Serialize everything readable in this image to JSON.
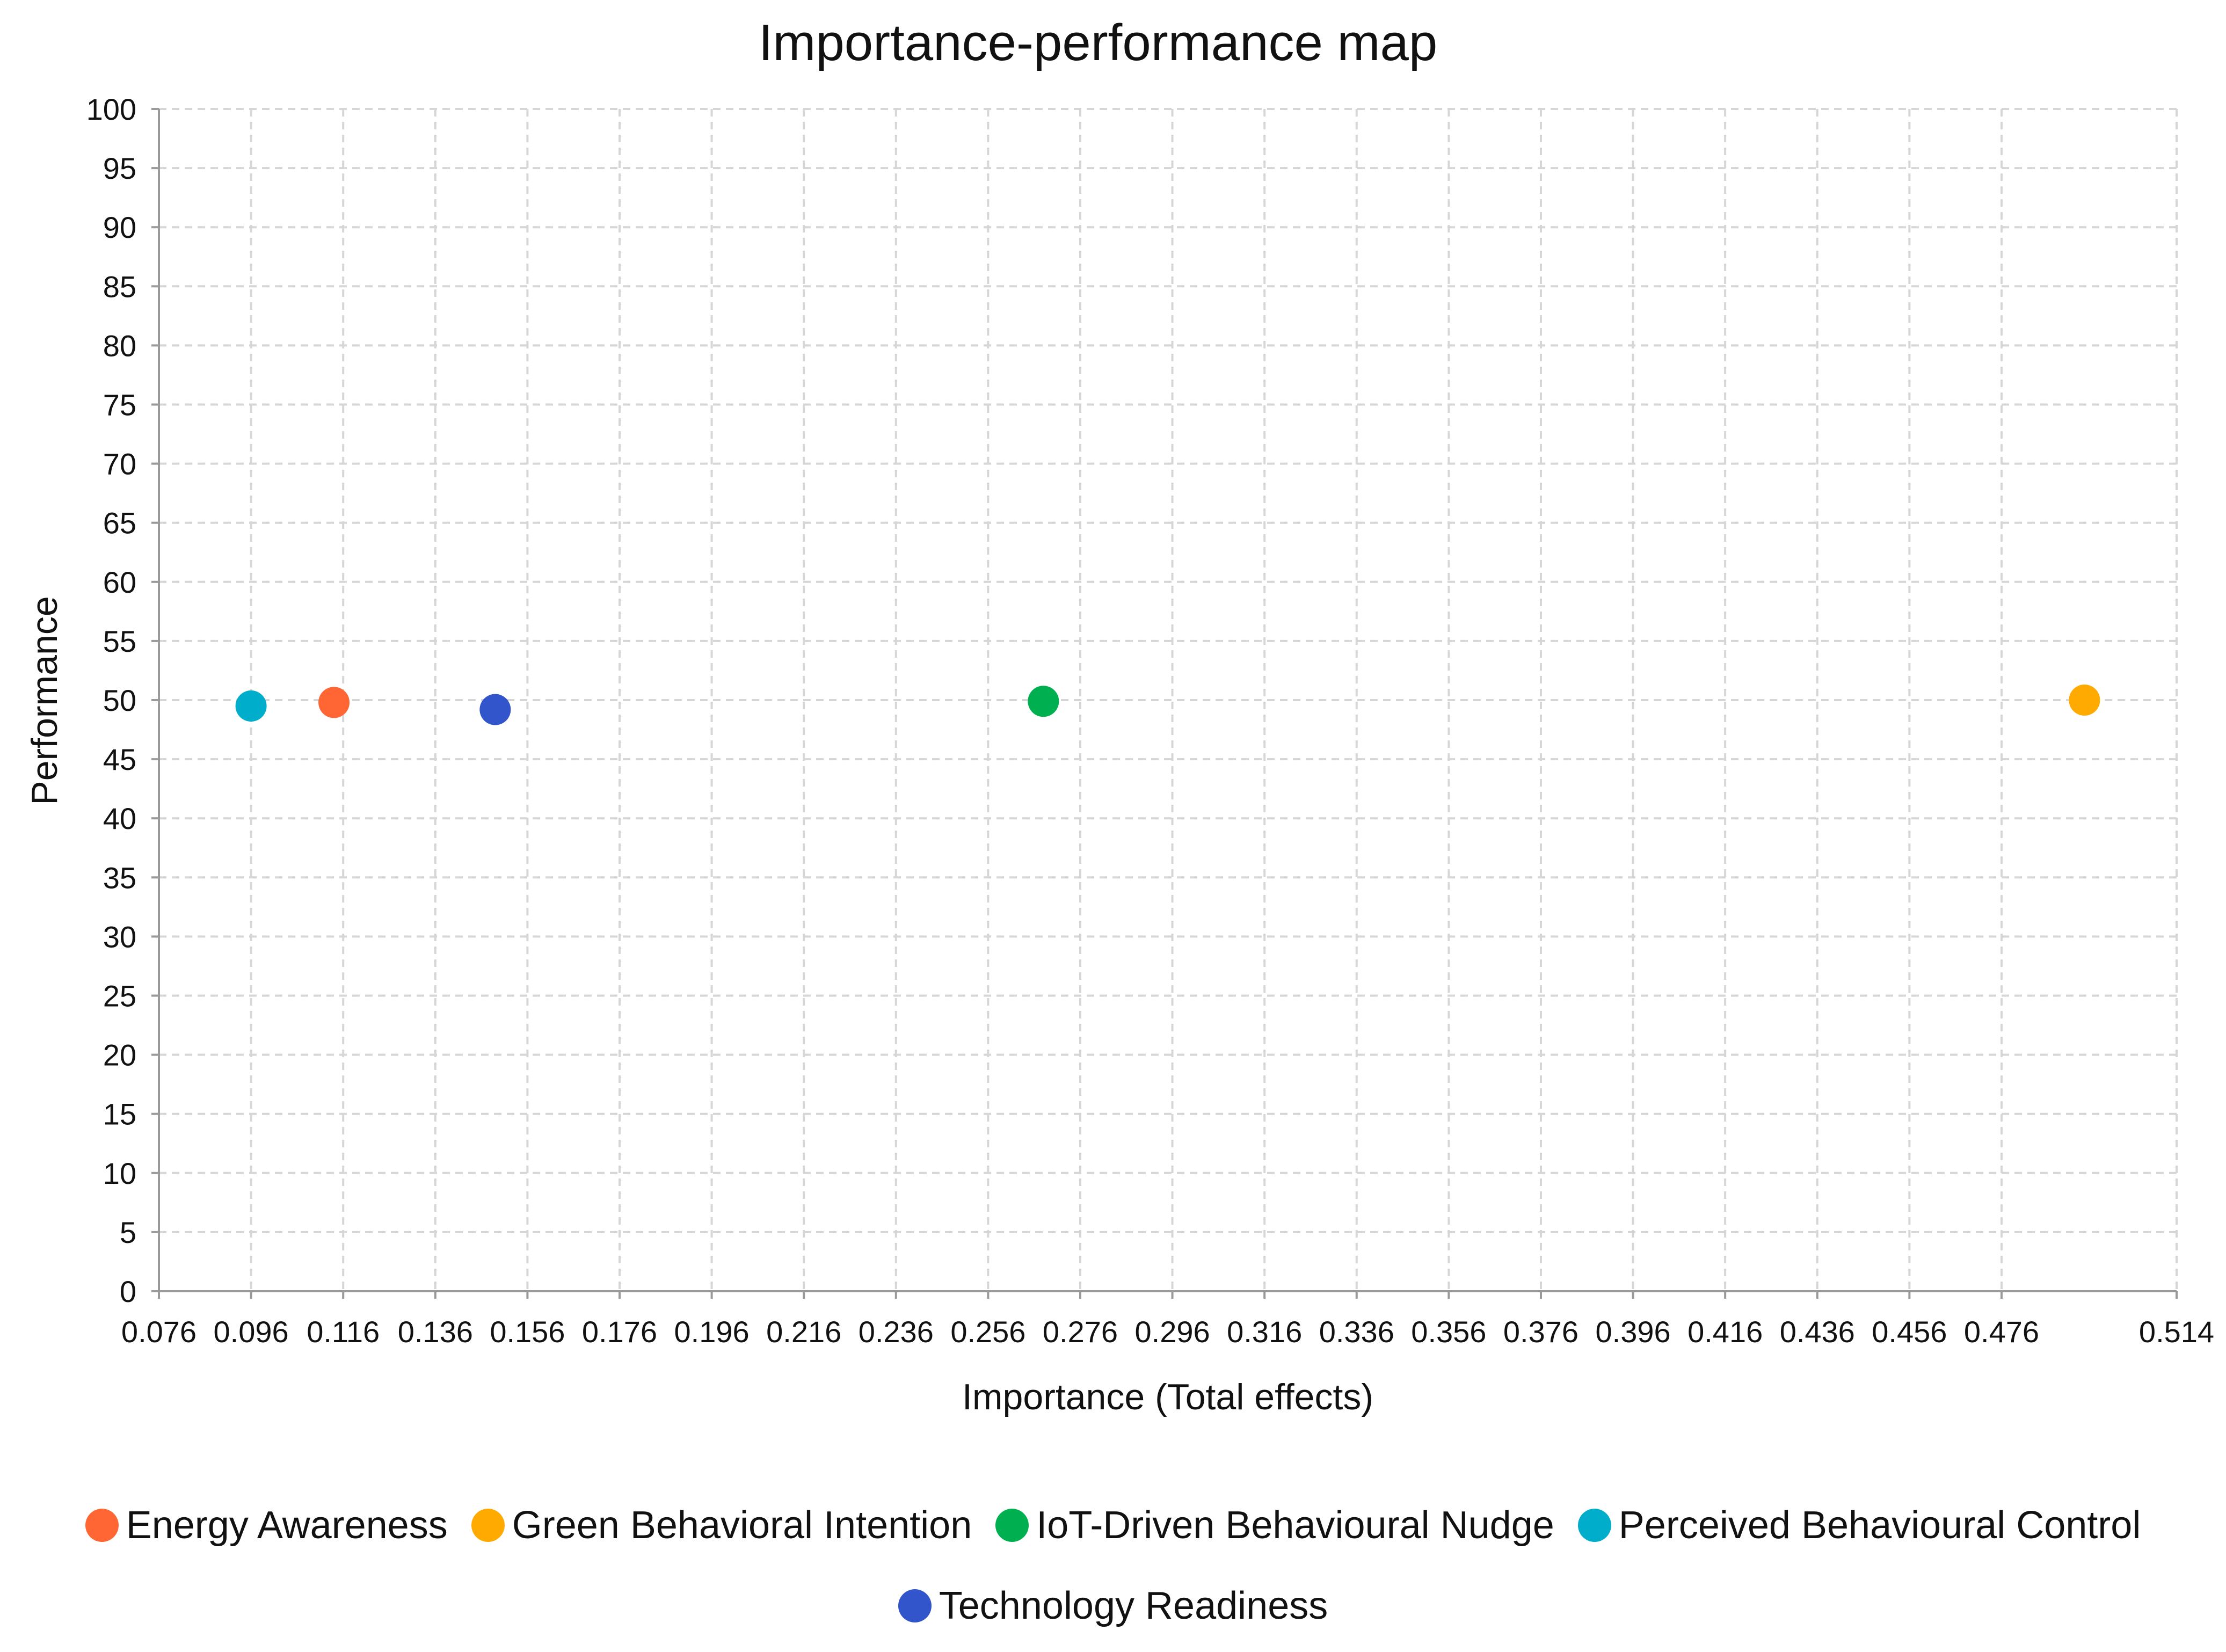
{
  "chart_data": {
    "type": "scatter",
    "title": "Importance-performance map",
    "xlabel": "Importance (Total effects)",
    "ylabel": "Performance",
    "xlim": [
      0.076,
      0.514
    ],
    "ylim": [
      0,
      100
    ],
    "x_ticks": [
      "0.076",
      "0.096",
      "0.116",
      "0.136",
      "0.156",
      "0.176",
      "0.196",
      "0.216",
      "0.236",
      "0.256",
      "0.276",
      "0.296",
      "0.316",
      "0.336",
      "0.356",
      "0.376",
      "0.396",
      "0.416",
      "0.436",
      "0.456",
      "0.476",
      "0.514"
    ],
    "y_ticks": [
      "0",
      "5",
      "10",
      "15",
      "20",
      "25",
      "30",
      "35",
      "40",
      "45",
      "50",
      "55",
      "60",
      "65",
      "70",
      "75",
      "80",
      "85",
      "90",
      "95",
      "100"
    ],
    "grid": true,
    "legend_position": "bottom",
    "series": [
      {
        "name": "Energy Awareness",
        "color": "#FF6633",
        "x": 0.114,
        "y": 49.8
      },
      {
        "name": "Green Behavioral Intention",
        "color": "#FFAA00",
        "x": 0.494,
        "y": 50.0
      },
      {
        "name": "IoT-Driven Behavioural Nudge",
        "color": "#00B050",
        "x": 0.268,
        "y": 49.9
      },
      {
        "name": "Perceived Behavioural Control",
        "color": "#00AECC",
        "x": 0.096,
        "y": 49.5
      },
      {
        "name": "Technology Readiness",
        "color": "#3355CC",
        "x": 0.149,
        "y": 49.2
      }
    ]
  }
}
